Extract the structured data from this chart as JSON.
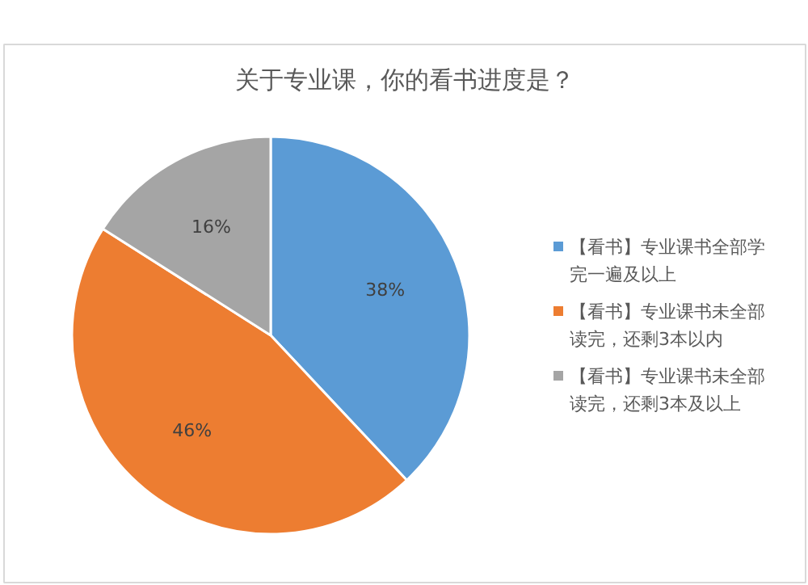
{
  "chart_data": {
    "type": "pie",
    "title": "关于专业课，你的看书进度是？",
    "categories": [
      "【看书】专业课书全部学完一遍及以上",
      "【看书】专业课书未全部读完，还剩3本以内",
      "【看书】专业课书未全部读完，还剩3本及以上"
    ],
    "values": [
      38,
      46,
      16
    ],
    "colors": [
      "#5b9bd5",
      "#ed7d31",
      "#a5a5a5"
    ],
    "value_labels": [
      "38%",
      "46%",
      "16%"
    ],
    "legend": "right"
  }
}
